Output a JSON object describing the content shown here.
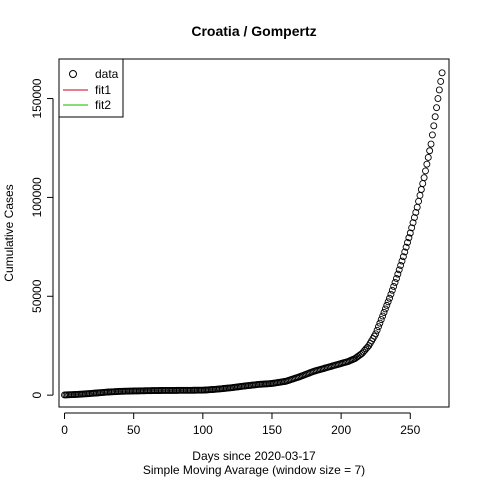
{
  "chart_data": {
    "type": "scatter",
    "title": "Croatia / Gompertz",
    "xlabel": "Days since 2020-03-17",
    "xlabel2": "Simple Moving Avarage (window size = 7)",
    "ylabel": "Cumulative Cases",
    "xlim": [
      -4,
      278
    ],
    "ylim": [
      -6000,
      170000
    ],
    "xticks": [
      0,
      50,
      100,
      150,
      200,
      250
    ],
    "xtick_labels": [
      "0",
      "50",
      "100",
      "150",
      "200",
      "250"
    ],
    "yticks": [
      0,
      50000,
      100000,
      150000
    ],
    "ytick_labels": [
      "0",
      "50000",
      "100000",
      "150000"
    ],
    "legend": {
      "position": "top-left",
      "entries": [
        {
          "label": "data",
          "symbol": "circle",
          "color": "#000000"
        },
        {
          "label": "fit1",
          "symbol": "line",
          "color": "#DF536B"
        },
        {
          "label": "fit2",
          "symbol": "line",
          "color": "#61D04F"
        }
      ]
    },
    "series": [
      {
        "name": "data",
        "style": "open-circle",
        "color": "#000000",
        "anchors": [
          [
            0,
            100
          ],
          [
            10,
            400
          ],
          [
            20,
            900
          ],
          [
            30,
            1500
          ],
          [
            40,
            1900
          ],
          [
            50,
            2100
          ],
          [
            60,
            2250
          ],
          [
            70,
            2350
          ],
          [
            80,
            2400
          ],
          [
            90,
            2450
          ],
          [
            100,
            2500
          ],
          [
            110,
            3000
          ],
          [
            120,
            3700
          ],
          [
            130,
            4600
          ],
          [
            140,
            5400
          ],
          [
            150,
            5900
          ],
          [
            160,
            7000
          ],
          [
            170,
            9300
          ],
          [
            180,
            12000
          ],
          [
            190,
            14000
          ],
          [
            200,
            16000
          ],
          [
            205,
            17000
          ],
          [
            210,
            18500
          ],
          [
            215,
            21000
          ],
          [
            220,
            25000
          ],
          [
            225,
            31000
          ],
          [
            230,
            40000
          ],
          [
            235,
            49000
          ],
          [
            240,
            59000
          ],
          [
            245,
            70000
          ],
          [
            250,
            82000
          ],
          [
            255,
            95000
          ],
          [
            260,
            110000
          ],
          [
            265,
            127000
          ],
          [
            270,
            150000
          ],
          [
            273,
            163000
          ]
        ],
        "x_start": 0,
        "x_end": 273
      }
    ],
    "grid": false
  }
}
